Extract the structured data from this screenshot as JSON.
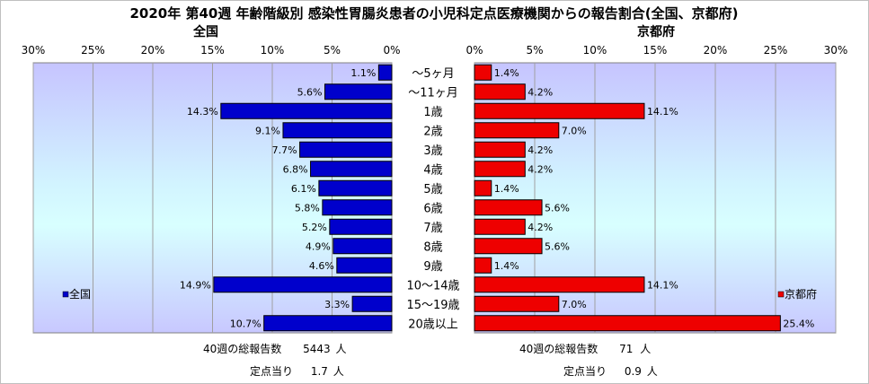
{
  "chart_data": {
    "type": "bar",
    "orientation": "horizontal",
    "layout": "back-to-back",
    "title": "2020年 第40週 年齢階級別 感染性胃腸炎患者の小児科定点医療機関からの報告割合(全国、京都府)",
    "categories": [
      "～5ヶ月",
      "～11ヶ月",
      "1歳",
      "2歳",
      "3歳",
      "4歳",
      "5歳",
      "6歳",
      "7歳",
      "8歳",
      "9歳",
      "10～14歳",
      "15～19歳",
      "20歳以上"
    ],
    "x_ticks": [
      "30%",
      "25%",
      "20%",
      "15%",
      "10%",
      "5%",
      "0%"
    ],
    "x_ticks_right": [
      "0%",
      "5%",
      "10%",
      "15%",
      "20%",
      "25%",
      "30%"
    ],
    "xlim": [
      0,
      30
    ],
    "grid": true,
    "series": [
      {
        "name": "全国",
        "side": "left",
        "color": "#0000cc",
        "background": "gradient lavender-cyan",
        "values": [
          1.1,
          5.6,
          14.3,
          9.1,
          7.7,
          6.8,
          6.1,
          5.8,
          5.2,
          4.9,
          4.6,
          14.9,
          3.3,
          10.7
        ],
        "labels": [
          "1.1%",
          "5.6%",
          "14.3%",
          "9.1%",
          "7.7%",
          "6.8%",
          "6.1%",
          "5.8%",
          "5.2%",
          "4.9%",
          "4.6%",
          "14.9%",
          "3.3%",
          "10.7%"
        ]
      },
      {
        "name": "京都府",
        "side": "right",
        "color": "#ee0000",
        "background": "gradient lavender-cyan",
        "values": [
          1.4,
          4.2,
          14.1,
          7.0,
          4.2,
          4.2,
          1.4,
          5.6,
          4.2,
          5.6,
          1.4,
          14.1,
          7.0,
          25.4
        ],
        "labels": [
          "1.4%",
          "4.2%",
          "14.1%",
          "7.0%",
          "4.2%",
          "4.2%",
          "1.4%",
          "5.6%",
          "4.2%",
          "5.6%",
          "1.4%",
          "14.1%",
          "7.0%",
          "25.4%"
        ]
      }
    ],
    "legend_placement": "inside-left-bottom / inside-right-bottom"
  },
  "footer": {
    "left": {
      "total_label": "40週の総報告数",
      "total_value": "5443",
      "total_unit": "人",
      "per_label": "定点当り",
      "per_value": "1.7",
      "per_unit": "人"
    },
    "right": {
      "total_label": "40週の総報告数",
      "total_value": "71",
      "total_unit": "人",
      "per_label": "定点当り",
      "per_value": "0.9",
      "per_unit": "人"
    }
  }
}
